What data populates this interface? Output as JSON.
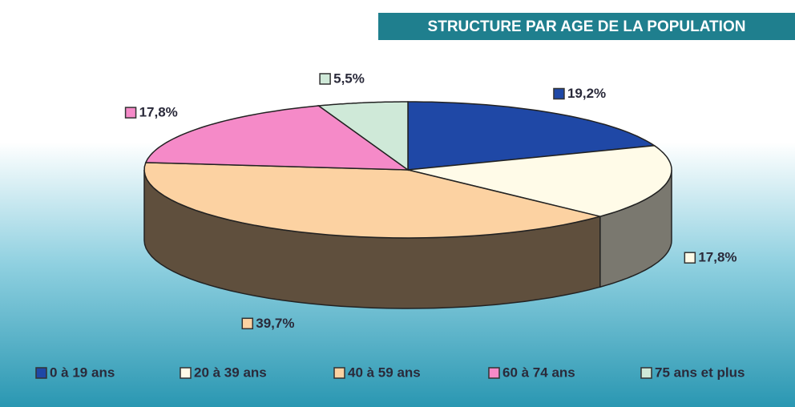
{
  "chart_data": {
    "type": "pie3d",
    "title": "STRUCTURE PAR AGE DE LA POPULATION",
    "categories": [
      "0 à 19 ans",
      "20 à 39 ans",
      "40 à 59 ans",
      "60 à 74 ans",
      "75 ans et plus"
    ],
    "values": [
      19.2,
      17.8,
      39.7,
      17.8,
      5.5
    ],
    "value_labels": [
      "19,2%",
      "17,8%",
      "39,7%",
      "17,8%",
      "5,5%"
    ],
    "colors": [
      "#1f48a6",
      "#fffbe8",
      "#fcd2a2",
      "#f58ac8",
      "#cfe9d8"
    ],
    "legend": "bottom"
  }
}
